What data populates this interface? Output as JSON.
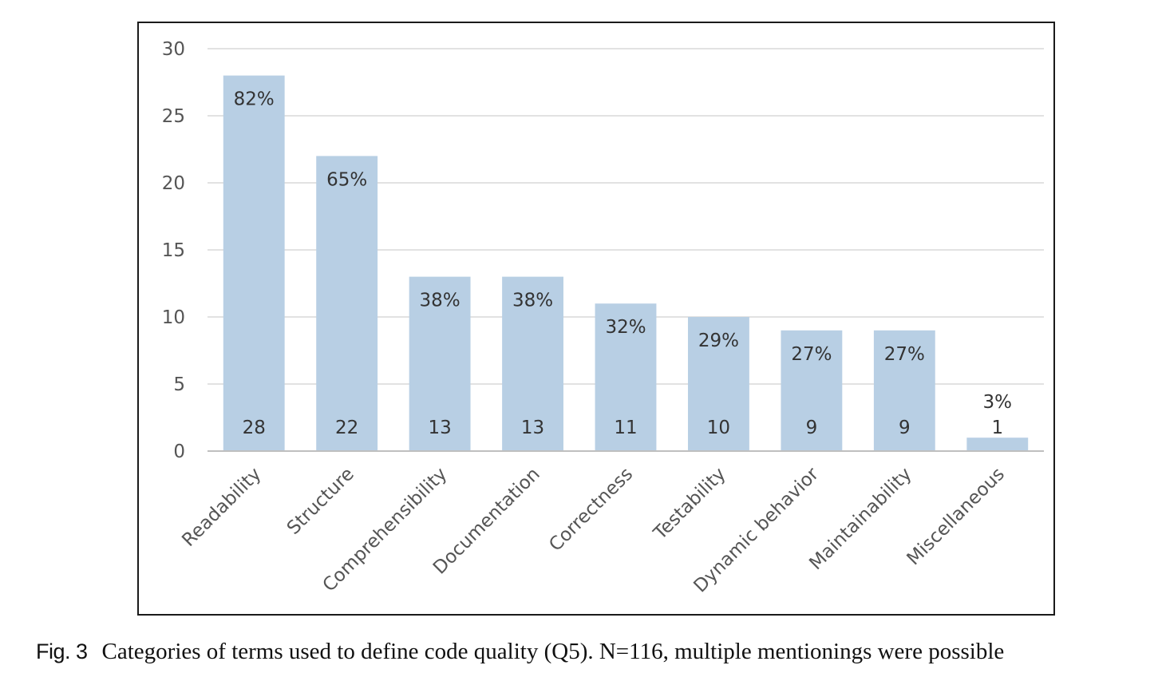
{
  "chart_data": {
    "type": "bar",
    "categories": [
      "Readability",
      "Structure",
      "Comprehensibility",
      "Documentation",
      "Correctness",
      "Testability",
      "Dynamic behavior",
      "Maintainability",
      "Miscellaneous"
    ],
    "values": [
      28,
      22,
      13,
      13,
      11,
      10,
      9,
      9,
      1
    ],
    "percent_labels": [
      "82%",
      "65%",
      "38%",
      "38%",
      "32%",
      "29%",
      "27%",
      "27%",
      "3%"
    ],
    "value_labels": [
      "28",
      "22",
      "13",
      "13",
      "11",
      "10",
      "9",
      "9",
      "1"
    ],
    "yticks": [
      "0",
      "5",
      "10",
      "15",
      "20",
      "25",
      "30"
    ],
    "ylim": [
      0,
      30
    ],
    "grid": true,
    "bar_color": "#b8cfe4",
    "gridline_color": "#d9d9d9",
    "axis_color": "#bfbfbf"
  },
  "caption": {
    "label": "Fig. 3",
    "text": "Categories of terms used to define code quality (Q5). N=116, multiple mentionings were possible"
  }
}
